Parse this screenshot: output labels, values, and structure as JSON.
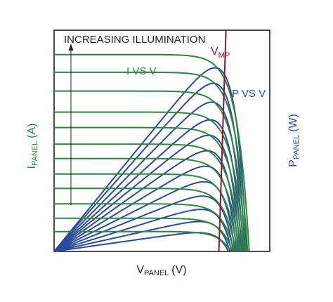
{
  "chart_data": {
    "type": "line",
    "title": "",
    "annotation": "INCREASING ILLUMINATION",
    "xlabel": {
      "main": "V",
      "sub": "PANEL",
      "unit": "(V)"
    },
    "ylabel_left": {
      "main": "I",
      "sub": "PANEL",
      "unit": "(A)"
    },
    "ylabel_right": {
      "main": "P",
      "sub": "PANEL",
      "unit": "(W)"
    },
    "xlim": [
      0,
      1
    ],
    "ylim": [
      0,
      1
    ],
    "grid": false,
    "vmp_label": {
      "main": "V",
      "sub": "MP"
    },
    "vmp_line": {
      "x": [
        0.797,
        0.764
      ],
      "y": [
        1.0,
        0.0
      ]
    },
    "i_vs_v_label": "I VS V",
    "p_vs_v_label": "P VS V",
    "i_vs_v_levels": [
      0.89,
      0.81,
      0.725,
      0.63,
      0.56,
      0.485,
      0.42,
      0.35,
      0.285,
      0.215,
      0.15,
      0.09
    ],
    "p_vs_v_peaks": [
      0.83,
      0.76,
      0.675,
      0.595,
      0.525,
      0.455,
      0.385,
      0.315,
      0.25,
      0.19,
      0.135,
      0.085
    ],
    "colors": {
      "i_vs_v": "#2e8540",
      "p_vs_v": "#2b4a9e",
      "vmp": "#8b1a2b",
      "text": "#231f20",
      "axis": "#231f20",
      "arrow": "#231f20"
    }
  }
}
